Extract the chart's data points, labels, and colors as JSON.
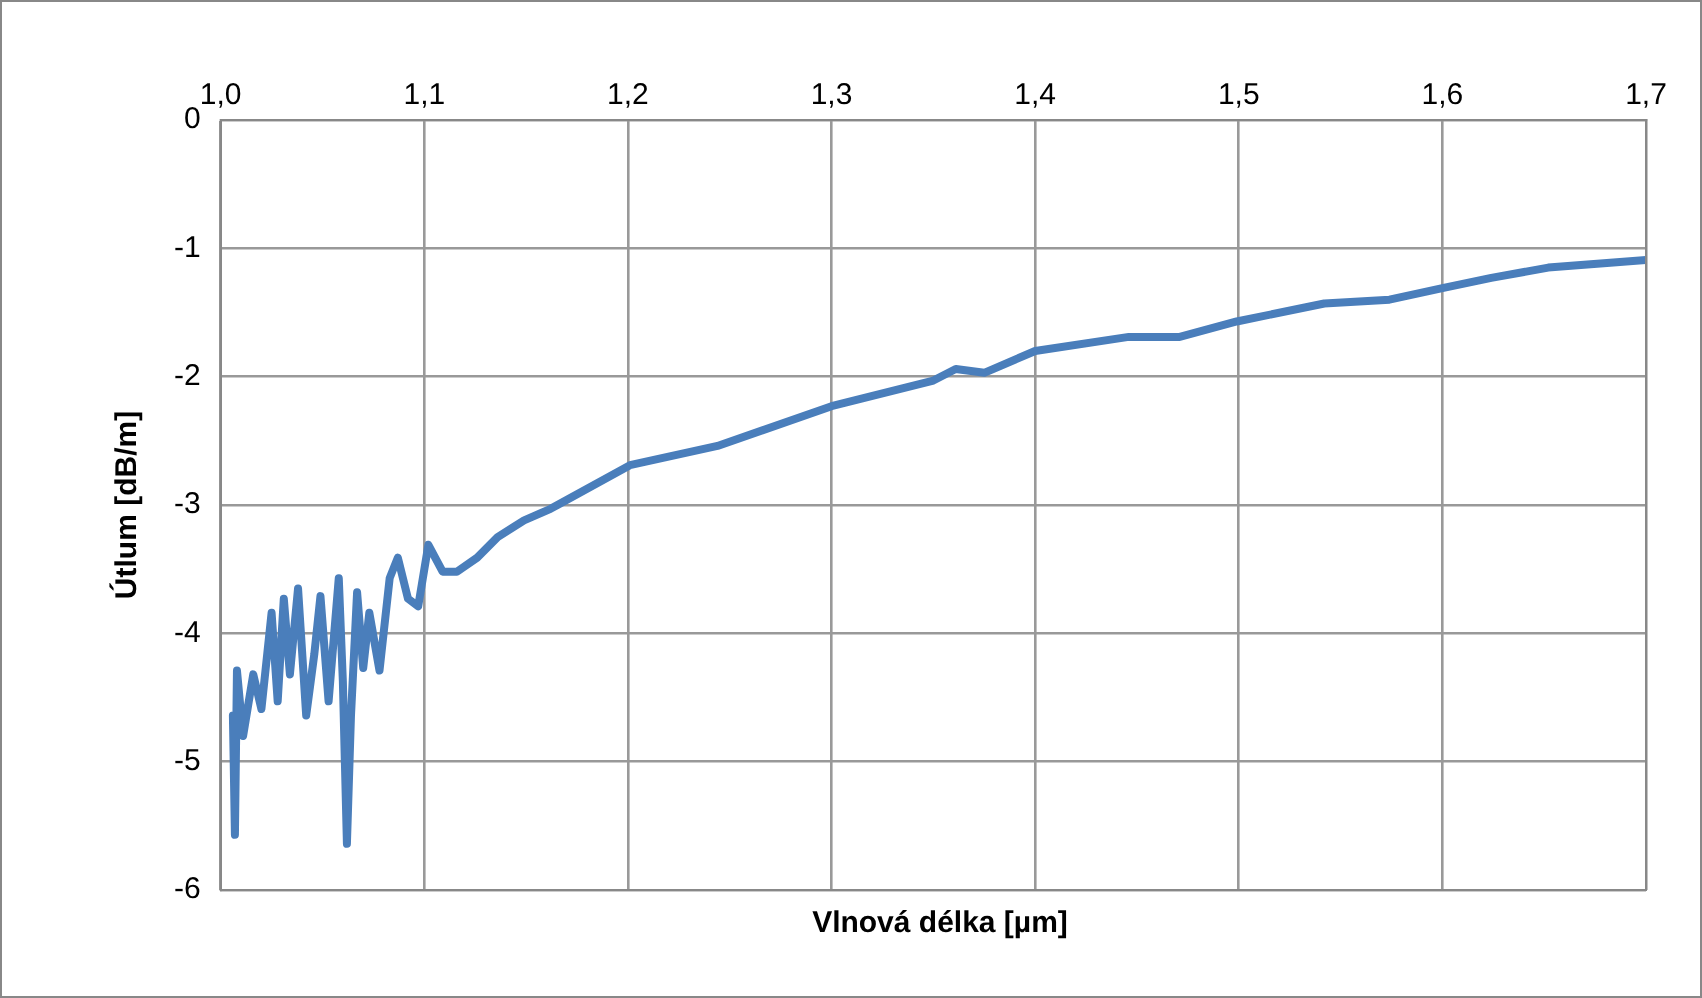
{
  "chart_data": {
    "type": "line",
    "xlabel": "Vlnová délka [µm]",
    "ylabel": "Útlum [dB/m]",
    "xlim": [
      1.0,
      1.7
    ],
    "xticks": [
      {
        "value": 1.0,
        "label": "1,0"
      },
      {
        "value": 1.1,
        "label": "1,1"
      },
      {
        "value": 1.2,
        "label": "1,2"
      },
      {
        "value": 1.3,
        "label": "1,3"
      },
      {
        "value": 1.4,
        "label": "1,4"
      },
      {
        "value": 1.5,
        "label": "1,5"
      },
      {
        "value": 1.6,
        "label": "1,6"
      },
      {
        "value": 1.7,
        "label": "1,7"
      }
    ],
    "ylim": [
      -6,
      0
    ],
    "yticks": [
      -6,
      -5,
      -4,
      -3,
      -2,
      -1,
      0
    ],
    "grid": true,
    "legend": false,
    "marker": "none",
    "line_style": "solid",
    "series": [
      {
        "color": "#4a7ebb",
        "x": [
          1.006,
          1.007,
          1.008,
          1.011,
          1.016,
          1.02,
          1.025,
          1.028,
          1.031,
          1.034,
          1.038,
          1.042,
          1.046,
          1.049,
          1.053,
          1.058,
          1.06,
          1.062,
          1.064,
          1.067,
          1.07,
          1.073,
          1.078,
          1.083,
          1.087,
          1.092,
          1.097,
          1.102,
          1.109,
          1.116,
          1.126,
          1.136,
          1.149,
          1.162,
          1.201,
          1.244,
          1.3,
          1.35,
          1.361,
          1.375,
          1.4,
          1.446,
          1.471,
          1.499,
          1.542,
          1.574,
          1.6,
          1.624,
          1.652,
          1.684,
          1.7
        ],
        "values": [
          -4.64,
          -5.57,
          -4.29,
          -4.8,
          -4.32,
          -4.59,
          -3.84,
          -4.53,
          -3.73,
          -4.32,
          -3.65,
          -4.64,
          -4.16,
          -3.71,
          -4.53,
          -3.57,
          -4.37,
          -5.64,
          -4.64,
          -3.68,
          -4.27,
          -3.84,
          -4.29,
          -3.57,
          -3.41,
          -3.73,
          -3.79,
          -3.31,
          -3.52,
          -3.52,
          -3.41,
          -3.25,
          -3.12,
          -3.03,
          -2.69,
          -2.54,
          -2.23,
          -2.03,
          -1.94,
          -1.97,
          -1.8,
          -1.69,
          -1.69,
          -1.57,
          -1.43,
          -1.4,
          -1.31,
          -1.23,
          -1.15,
          -1.11,
          -1.09
        ]
      }
    ]
  }
}
